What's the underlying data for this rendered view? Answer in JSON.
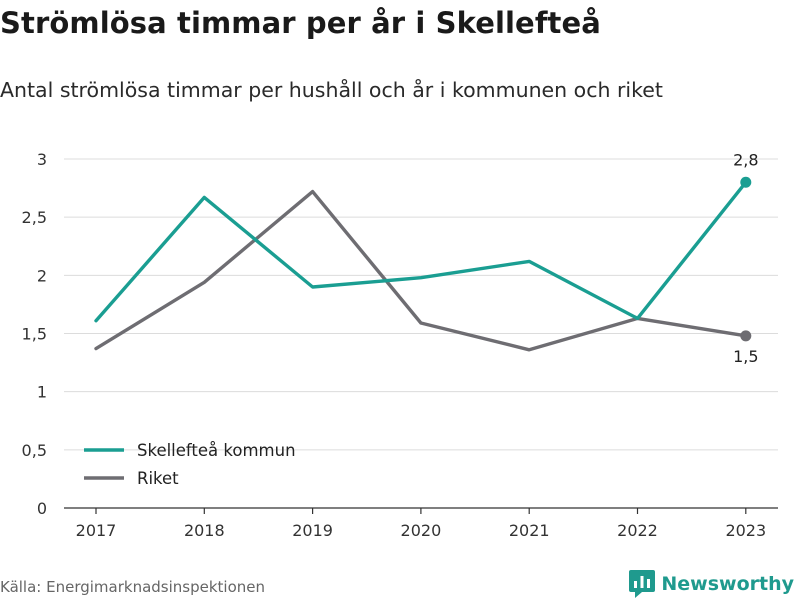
{
  "title": "Strömlösa timmar per år i Skellefteå",
  "subtitle": "Antal strömlösa timmar per hushåll och år i kommunen och riket",
  "source": "Källa: Energimarknadsinspektionen",
  "brand": {
    "name": "Newsworthy",
    "color": "#1f9a8e",
    "icon": "newsworthy-logo-icon"
  },
  "chart_data": {
    "type": "line",
    "categories": [
      "2017",
      "2018",
      "2019",
      "2020",
      "2021",
      "2022",
      "2023"
    ],
    "series": [
      {
        "name": "Skellefteå kommun",
        "color": "#1a9e92",
        "values": [
          1.61,
          2.67,
          1.9,
          1.98,
          2.12,
          1.63,
          2.8
        ]
      },
      {
        "name": "Riket",
        "color": "#6e6d72",
        "values": [
          1.37,
          1.94,
          2.72,
          1.59,
          1.36,
          1.63,
          1.48
        ]
      }
    ],
    "ylim": [
      0,
      3
    ],
    "y_ticks": [
      {
        "value": 0,
        "label": "0"
      },
      {
        "value": 0.5,
        "label": "0,5"
      },
      {
        "value": 1,
        "label": "1"
      },
      {
        "value": 1.5,
        "label": "1,5"
      },
      {
        "value": 2,
        "label": "2"
      },
      {
        "value": 2.5,
        "label": "2,5"
      },
      {
        "value": 3,
        "label": "3"
      }
    ],
    "end_labels": [
      "2,8",
      "1,5"
    ],
    "grid": true,
    "legend_position": "bottom-left",
    "xlabel": "",
    "ylabel": ""
  }
}
